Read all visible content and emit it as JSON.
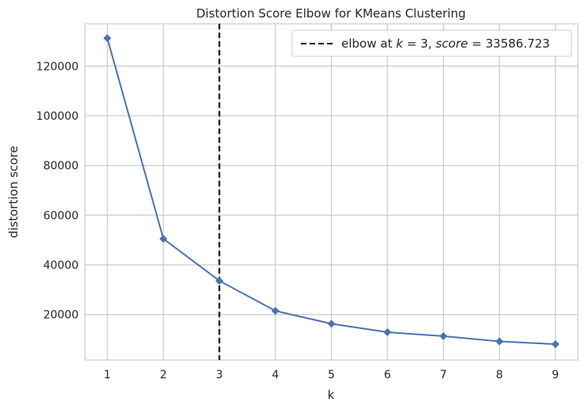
{
  "chart_data": {
    "type": "line",
    "title": "Distortion Score Elbow for KMeans Clustering",
    "xlabel": "k",
    "ylabel": "distortion score",
    "x": [
      1,
      2,
      3,
      4,
      5,
      6,
      7,
      8,
      9
    ],
    "series": [
      {
        "values": [
          131200,
          50500,
          33587,
          21500,
          16300,
          12900,
          11300,
          9200,
          8100
        ],
        "color": "#4c72b0",
        "marker": "diamond"
      }
    ],
    "xlim": [
      0.6,
      9.4
    ],
    "ylim": [
      1700,
      137000
    ],
    "xticks": [
      1,
      2,
      3,
      4,
      5,
      6,
      7,
      8,
      9
    ],
    "yticks": [
      20000,
      40000,
      60000,
      80000,
      100000,
      120000
    ],
    "grid": true,
    "elbow": {
      "k": 3,
      "score": "33586.723",
      "color": "#000000",
      "style": "dashed"
    },
    "legend": {
      "position": "top-right",
      "prefix": "elbow at ",
      "k_symbol": "k",
      "k_part": " = 3, ",
      "score_symbol": "score",
      "score_part": " = 33586.723"
    }
  },
  "colors": {
    "background": "#ffffff",
    "grid": "#cccccc",
    "axes": "#cccccc",
    "text": "#262626"
  }
}
